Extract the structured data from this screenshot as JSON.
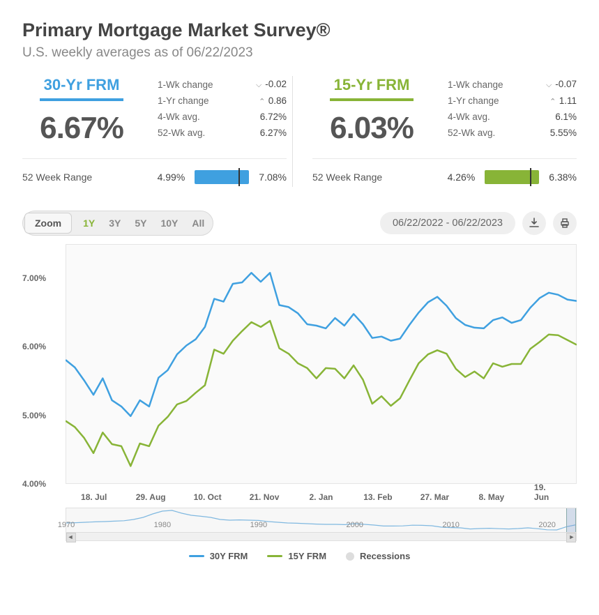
{
  "title": "Primary Mortgage Market Survey®",
  "subtitle": "U.S. weekly averages as of 06/22/2023",
  "colors": {
    "blue": "#3fa0e0",
    "green": "#88b437",
    "plot_bg": "#fafafa",
    "grid": "#e5e5e5"
  },
  "panels": [
    {
      "key": "frm30",
      "name": "30-Yr FRM",
      "name_color": "#3fa0e0",
      "underline_color": "#3fa0e0",
      "rate": "6.67%",
      "stats": [
        {
          "label": "1-Wk change",
          "arrow": "down",
          "value": "-0.02"
        },
        {
          "label": "1-Yr change",
          "arrow": "up",
          "value": "0.86"
        },
        {
          "label": "4-Wk avg.",
          "arrow": "",
          "value": "6.72%"
        },
        {
          "label": "52-Wk avg.",
          "arrow": "",
          "value": "6.27%"
        }
      ],
      "range": {
        "label": "52 Week Range",
        "low": "4.99%",
        "high": "7.08%",
        "bar_color": "#3fa0e0",
        "marker_pct": 80
      }
    },
    {
      "key": "frm15",
      "name": "15-Yr FRM",
      "name_color": "#88b437",
      "underline_color": "#88b437",
      "rate": "6.03%",
      "stats": [
        {
          "label": "1-Wk change",
          "arrow": "down",
          "value": "-0.07"
        },
        {
          "label": "1-Yr change",
          "arrow": "up",
          "value": "1.11"
        },
        {
          "label": "4-Wk avg.",
          "arrow": "",
          "value": "6.1%"
        },
        {
          "label": "52-Wk avg.",
          "arrow": "",
          "value": "5.55%"
        }
      ],
      "range": {
        "label": "52 Week Range",
        "low": "4.26%",
        "high": "6.38%",
        "bar_color": "#88b437",
        "marker_pct": 83
      }
    }
  ],
  "controls": {
    "zoom_label": "Zoom",
    "zoom_options": [
      "1Y",
      "3Y",
      "5Y",
      "10Y",
      "All"
    ],
    "zoom_active": "1Y",
    "date_range": "06/22/2022 - 06/22/2023"
  },
  "chart": {
    "type": "line",
    "ylim": [
      4.0,
      7.5
    ],
    "yticks": [
      4.0,
      5.0,
      6.0,
      7.0
    ],
    "ytick_labels": [
      "4.00%",
      "5.00%",
      "6.00%",
      "7.00%"
    ],
    "xticks": [
      "18. Jul",
      "29. Aug",
      "10. Oct",
      "21. Nov",
      "2. Jan",
      "13. Feb",
      "27. Mar",
      "8. May",
      "19. Jun"
    ],
    "line_width": 2.5,
    "series": [
      {
        "name": "30Y FRM",
        "color": "#3fa0e0",
        "values": [
          5.81,
          5.7,
          5.51,
          5.3,
          5.54,
          5.22,
          5.13,
          4.99,
          5.22,
          5.13,
          5.55,
          5.66,
          5.89,
          6.02,
          6.11,
          6.29,
          6.7,
          6.66,
          6.92,
          6.94,
          7.08,
          6.95,
          7.08,
          6.61,
          6.58,
          6.49,
          6.33,
          6.31,
          6.27,
          6.42,
          6.31,
          6.48,
          6.33,
          6.13,
          6.15,
          6.09,
          6.12,
          6.32,
          6.5,
          6.65,
          6.73,
          6.6,
          6.42,
          6.32,
          6.28,
          6.27,
          6.39,
          6.43,
          6.35,
          6.39,
          6.57,
          6.71,
          6.79,
          6.76,
          6.69,
          6.67
        ]
      },
      {
        "name": "15Y FRM",
        "color": "#88b437",
        "values": [
          4.92,
          4.83,
          4.67,
          4.45,
          4.75,
          4.58,
          4.55,
          4.26,
          4.59,
          4.55,
          4.85,
          4.98,
          5.16,
          5.21,
          5.33,
          5.44,
          5.96,
          5.9,
          6.09,
          6.23,
          6.36,
          6.29,
          6.38,
          5.98,
          5.9,
          5.76,
          5.69,
          5.54,
          5.69,
          5.68,
          5.54,
          5.73,
          5.52,
          5.17,
          5.28,
          5.14,
          5.25,
          5.51,
          5.76,
          5.89,
          5.95,
          5.9,
          5.68,
          5.56,
          5.64,
          5.54,
          5.76,
          5.71,
          5.75,
          5.75,
          5.97,
          6.07,
          6.18,
          6.17,
          6.1,
          6.03
        ]
      }
    ]
  },
  "navigator": {
    "decades": [
      "1970",
      "1980",
      "1990",
      "2000",
      "2010",
      "2020"
    ],
    "range_start_year": 1970,
    "range_end_year": 2023,
    "window_start_year": 2022,
    "window_end_year": 2023,
    "spark_color": "#7fb8e0",
    "spark_values": [
      8.0,
      8.2,
      8.5,
      8.8,
      9.0,
      9.3,
      9.6,
      10.5,
      12.0,
      14.5,
      16.5,
      17.0,
      15.0,
      13.5,
      12.8,
      12.0,
      10.5,
      10.0,
      10.2,
      10.0,
      9.8,
      9.0,
      8.5,
      8.0,
      7.8,
      7.5,
      7.2,
      7.0,
      7.0,
      6.8,
      7.5,
      7.0,
      6.5,
      5.8,
      5.8,
      5.9,
      6.4,
      6.3,
      6.0,
      5.0,
      4.7,
      4.5,
      3.7,
      4.0,
      4.2,
      3.9,
      3.7,
      4.0,
      4.5,
      3.9,
      3.1,
      3.0,
      5.3,
      6.7
    ]
  },
  "legend": {
    "items": [
      {
        "label": "30Y FRM",
        "type": "line",
        "color": "#3fa0e0"
      },
      {
        "label": "15Y FRM",
        "type": "line",
        "color": "#88b437"
      },
      {
        "label": "Recessions",
        "type": "dot",
        "color": "#dddddd"
      }
    ]
  }
}
